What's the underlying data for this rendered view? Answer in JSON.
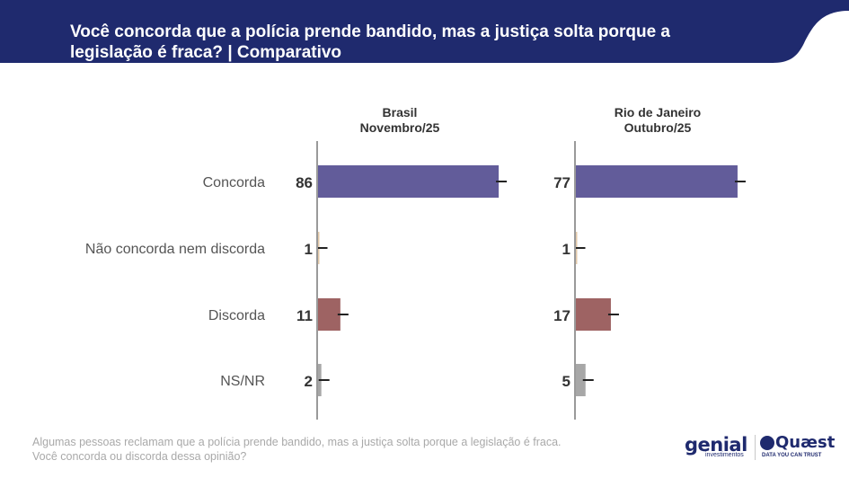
{
  "header": {
    "title": "Você concorda que a polícia prende bandido, mas a justiça solta porque a legislação é fraca? | Comparativo"
  },
  "chart_data": {
    "type": "bar",
    "orientation": "horizontal",
    "categories": [
      "Concorda",
      "Não concorda nem discorda",
      "Discorda",
      "NS/NR"
    ],
    "colors": [
      "#625c9a",
      "#e3c9a8",
      "#9e6363",
      "#a7a7a7"
    ],
    "panels": [
      {
        "label_line1": "Brasil",
        "label_line2": "Novembro/25",
        "values": [
          86,
          1,
          11,
          2
        ]
      },
      {
        "label_line1": "Rio de Janeiro",
        "label_line2": "Outubro/25",
        "values": [
          77,
          1,
          17,
          5
        ]
      }
    ],
    "xlim": [
      0,
      100
    ],
    "error_bars": true
  },
  "footnote": {
    "line1": "Algumas pessoas reclamam que a polícia prende bandido, mas a justiça solta porque a legislação é fraca.",
    "line2": "Você concorda ou discorda dessa opinião?"
  },
  "logos": {
    "genial": "genial",
    "genial_sub": "investimentos",
    "quaest": "Quæst",
    "quaest_sub": "DATA YOU CAN TRUST"
  }
}
